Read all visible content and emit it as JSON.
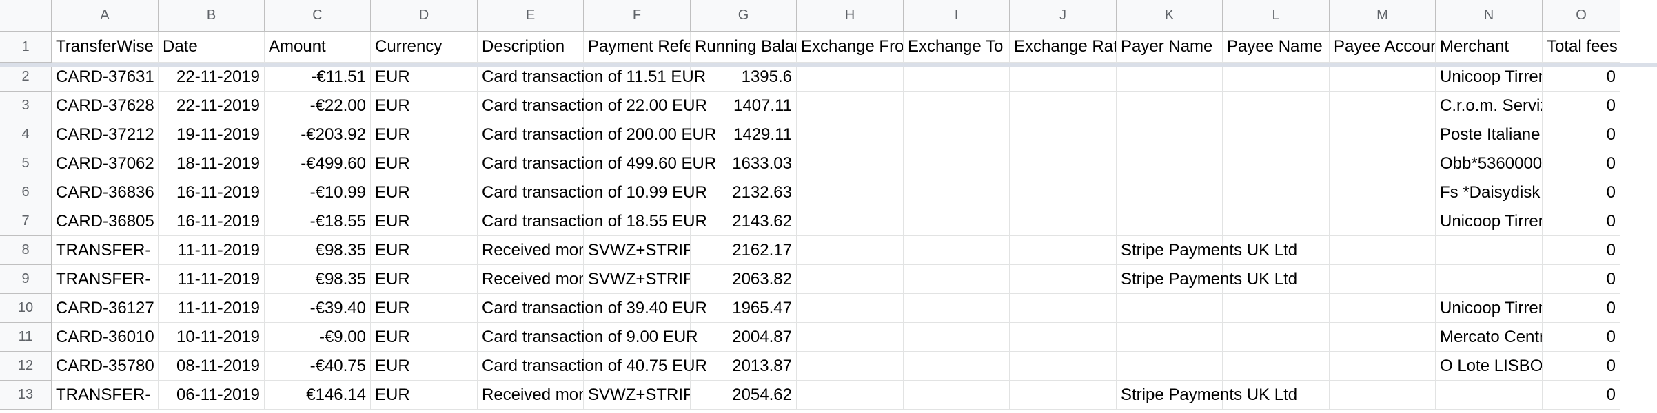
{
  "column_letters": [
    "A",
    "B",
    "C",
    "D",
    "E",
    "F",
    "G",
    "H",
    "I",
    "J",
    "K",
    "L",
    "M",
    "N",
    "O"
  ],
  "row_numbers": [
    "1",
    "2",
    "3",
    "4",
    "5",
    "6",
    "7",
    "8",
    "9",
    "10",
    "11",
    "12",
    "13"
  ],
  "header_row": [
    "TransferWise ID",
    "Date",
    "Amount",
    "Currency",
    "Description",
    "Payment Reference",
    "Running Balance",
    "Exchange From",
    "Exchange To",
    "Exchange Rate",
    "Payer Name",
    "Payee Name",
    "Payee Account Number",
    "Merchant",
    "Total fees"
  ],
  "rows": [
    [
      "CARD-37631",
      "22-11-2019",
      "-€11.51",
      "EUR",
      "Card transaction of 11.51 EUR",
      "",
      "1395.6",
      "",
      "",
      "",
      "",
      "",
      "",
      "Unicoop Tirreno",
      "0"
    ],
    [
      "CARD-37628",
      "22-11-2019",
      "-€22.00",
      "EUR",
      "Card transaction of 22.00 EUR",
      "",
      "1407.11",
      "",
      "",
      "",
      "",
      "",
      "",
      "C.r.o.m. Servizi",
      "0"
    ],
    [
      "CARD-37212",
      "19-11-2019",
      "-€203.92",
      "EUR",
      "Card transaction of 200.00 EUR",
      "",
      "1429.11",
      "",
      "",
      "",
      "",
      "",
      "",
      "Poste Italiane",
      "0"
    ],
    [
      "CARD-37062",
      "18-11-2019",
      "-€499.60",
      "EUR",
      "Card transaction of 499.60 EUR",
      "",
      "1633.03",
      "",
      "",
      "",
      "",
      "",
      "",
      "Obb*5360000",
      "0"
    ],
    [
      "CARD-36836",
      "16-11-2019",
      "-€10.99",
      "EUR",
      "Card transaction of 10.99 EUR",
      "",
      "2132.63",
      "",
      "",
      "",
      "",
      "",
      "",
      "Fs *Daisydisk",
      "0"
    ],
    [
      "CARD-36805",
      "16-11-2019",
      "-€18.55",
      "EUR",
      "Card transaction of 18.55 EUR",
      "",
      "2143.62",
      "",
      "",
      "",
      "",
      "",
      "",
      "Unicoop Tirreno",
      "0"
    ],
    [
      "TRANSFER-",
      "11-11-2019",
      "€98.35",
      "EUR",
      "Received money",
      "SVWZ+STRIPE",
      "2162.17",
      "",
      "",
      "",
      "Stripe Payments UK Ltd",
      "",
      "",
      "",
      "0"
    ],
    [
      "TRANSFER-",
      "11-11-2019",
      "€98.35",
      "EUR",
      "Received money",
      "SVWZ+STRIPE",
      "2063.82",
      "",
      "",
      "",
      "Stripe Payments UK Ltd",
      "",
      "",
      "",
      "0"
    ],
    [
      "CARD-36127",
      "11-11-2019",
      "-€39.40",
      "EUR",
      "Card transaction of 39.40 EUR",
      "",
      "1965.47",
      "",
      "",
      "",
      "",
      "",
      "",
      "Unicoop Tirreno",
      "0"
    ],
    [
      "CARD-36010",
      "10-11-2019",
      "-€9.00",
      "EUR",
      "Card transaction of 9.00 EUR",
      "",
      "2004.87",
      "",
      "",
      "",
      "",
      "",
      "",
      "Mercato Centrale",
      "0"
    ],
    [
      "CARD-35780",
      "08-11-2019",
      "-€40.75",
      "EUR",
      "Card transaction of 40.75 EUR",
      "",
      "2013.87",
      "",
      "",
      "",
      "",
      "",
      "",
      "O Lote LISBOA",
      "0"
    ],
    [
      "TRANSFER-",
      "06-11-2019",
      "€146.14",
      "EUR",
      "Received money",
      "SVWZ+STRIPE",
      "2054.62",
      "",
      "",
      "",
      "Stripe Payments UK Ltd",
      "",
      "",
      "",
      "0"
    ]
  ]
}
